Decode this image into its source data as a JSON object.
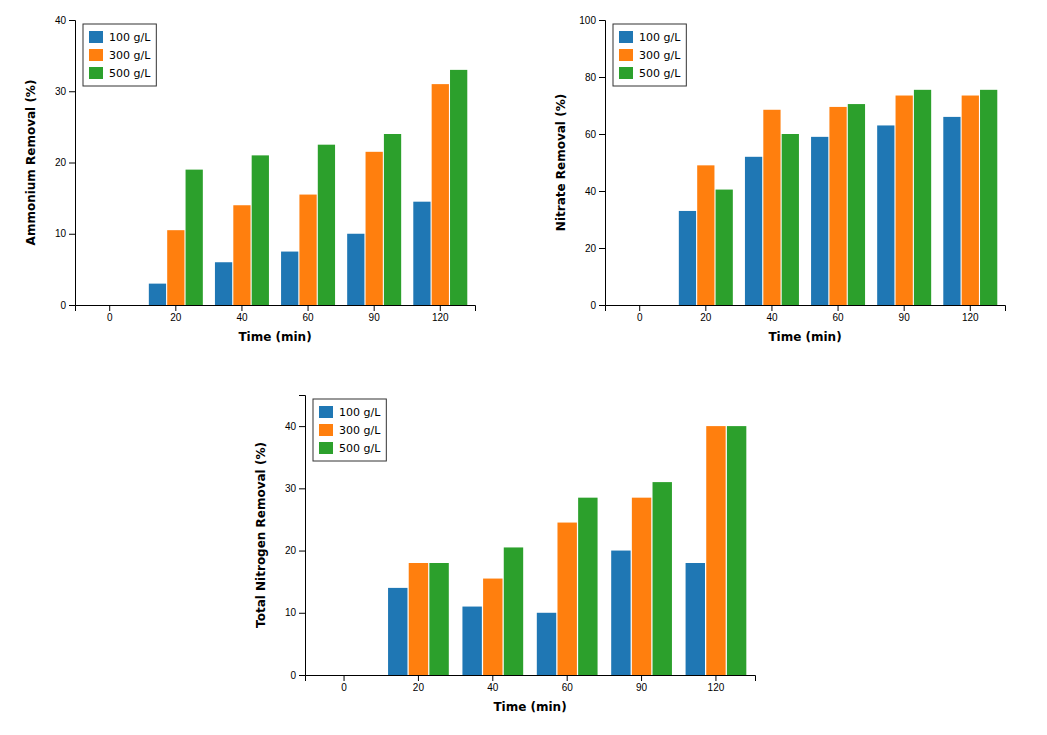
{
  "chart_data": [
    {
      "type": "bar",
      "x_label": "Time (min)",
      "y_label": "Ammonium Removal (%)",
      "categories": [
        "0",
        "20",
        "40",
        "60",
        "90",
        "120"
      ],
      "series": [
        {
          "name": "100 g/L",
          "values": [
            null,
            3.0,
            6.0,
            7.5,
            10.0,
            14.5
          ]
        },
        {
          "name": "300 g/L",
          "values": [
            null,
            10.5,
            14.0,
            15.5,
            21.5,
            31.0
          ]
        },
        {
          "name": "500 g/L",
          "values": [
            null,
            19.0,
            21.0,
            22.5,
            24.0,
            33.0
          ]
        }
      ],
      "ylim": [
        0,
        40
      ],
      "yticks": [
        0,
        10,
        20,
        30,
        40
      ],
      "grid": false,
      "legend": "upper left"
    },
    {
      "type": "bar",
      "x_label": "Time (min)",
      "y_label": "Nitrate Removal (%)",
      "categories": [
        "0",
        "20",
        "40",
        "60",
        "90",
        "120"
      ],
      "series": [
        {
          "name": "100 g/L",
          "values": [
            null,
            33.0,
            52.0,
            59.0,
            63.0,
            66.0
          ]
        },
        {
          "name": "300 g/L",
          "values": [
            null,
            49.0,
            68.5,
            69.5,
            73.5,
            73.5
          ]
        },
        {
          "name": "500 g/L",
          "values": [
            null,
            40.5,
            60.0,
            70.5,
            75.5,
            75.5
          ]
        }
      ],
      "ylim": [
        0,
        100
      ],
      "yticks": [
        0,
        20,
        40,
        60,
        80,
        100
      ],
      "grid": false,
      "legend": "upper left"
    },
    {
      "type": "bar",
      "x_label": "Time (min)",
      "y_label": "Total Nitrogen Removal (%)",
      "categories": [
        "0",
        "20",
        "40",
        "60",
        "90",
        "120"
      ],
      "series": [
        {
          "name": "100 g/L",
          "values": [
            null,
            14.0,
            11.0,
            10.0,
            20.0,
            18.0
          ]
        },
        {
          "name": "300 g/L",
          "values": [
            null,
            18.0,
            15.5,
            24.5,
            28.5,
            40.0
          ]
        },
        {
          "name": "500 g/L",
          "values": [
            null,
            18.0,
            20.5,
            28.5,
            31.0,
            40.0
          ]
        }
      ],
      "ylim": [
        0,
        45
      ],
      "yticks": [
        0,
        10,
        20,
        30,
        40
      ],
      "grid": false,
      "legend": "upper left"
    }
  ]
}
